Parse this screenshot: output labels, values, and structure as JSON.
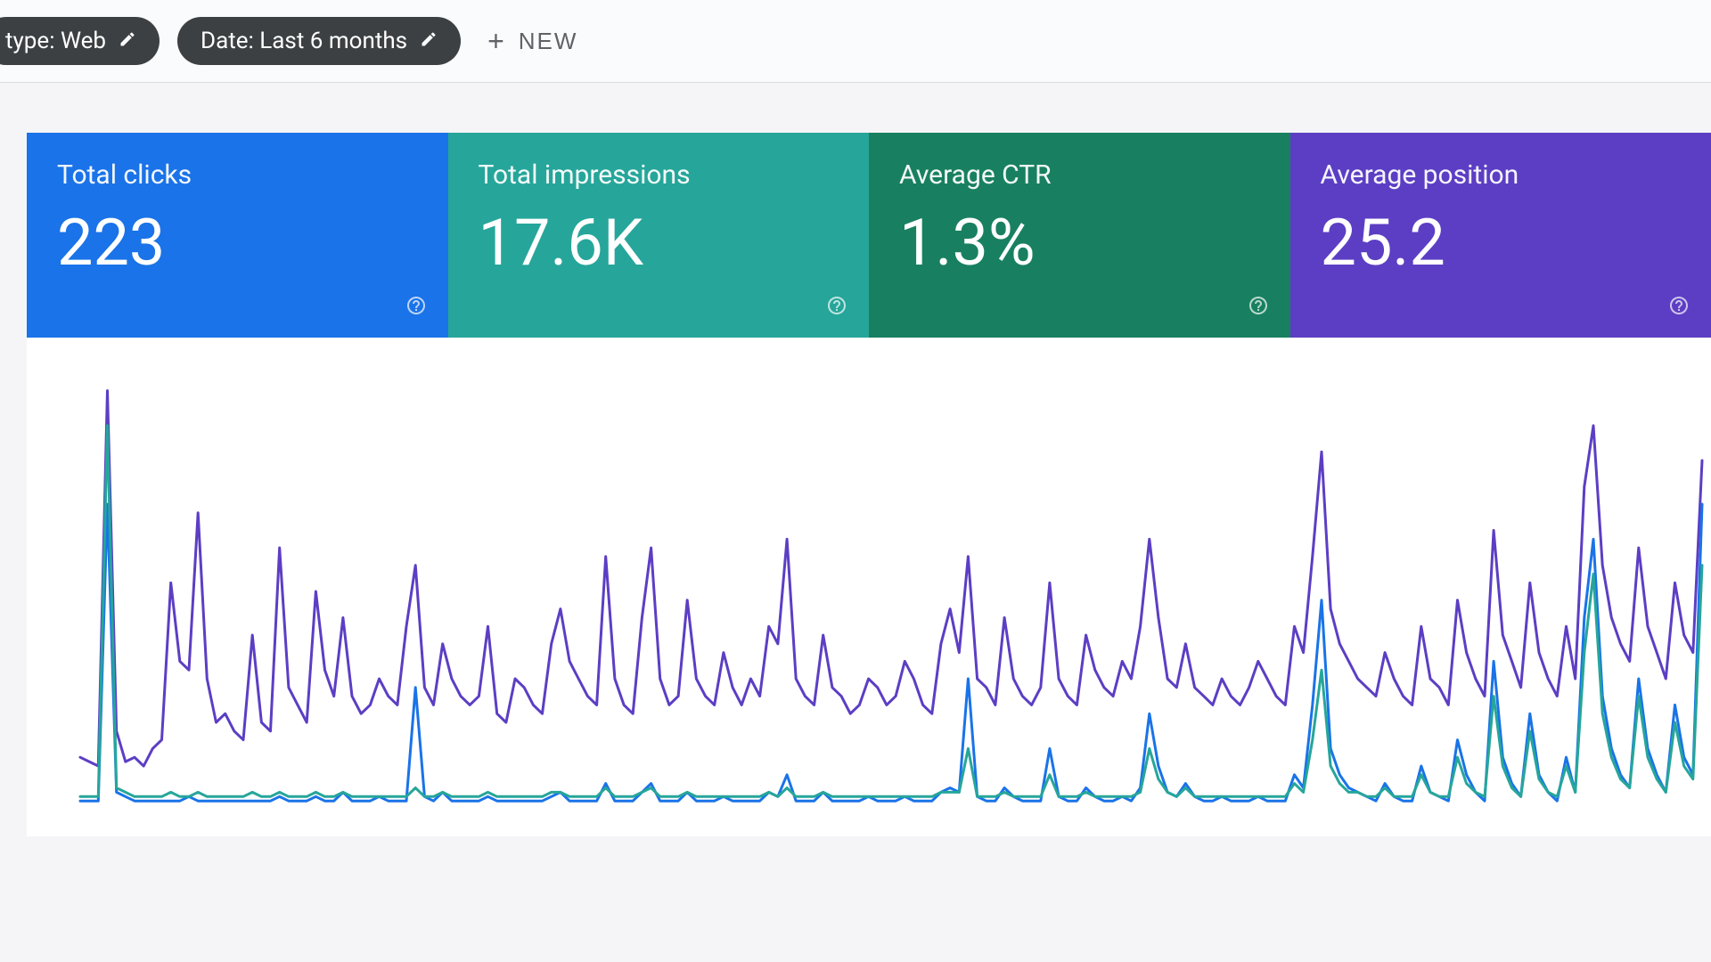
{
  "filters": {
    "type_chip_label": "type: Web",
    "date_chip_label": "Date: Last 6 months",
    "new_button_label": "NEW"
  },
  "metrics": [
    {
      "label": "Total clicks",
      "value": "223",
      "bg": "#1a73e8"
    },
    {
      "label": "Total impressions",
      "value": "17.6K",
      "bg": "#26a69a"
    },
    {
      "label": "Average CTR",
      "value": "1.3%",
      "bg": "#188060"
    },
    {
      "label": "Average position",
      "value": "25.2",
      "bg": "#5c3ec4"
    }
  ],
  "chart": {
    "type": "line",
    "background_color": "#ffffff",
    "viewbox_width": 1890,
    "viewbox_height": 560,
    "y_range": [
      0,
      100
    ],
    "x_count": 180,
    "stroke_width": 3,
    "series": [
      {
        "name": "impressions",
        "color": "#5c3ec4",
        "values": [
          12,
          11,
          10,
          96,
          18,
          11,
          12,
          10,
          14,
          16,
          52,
          34,
          32,
          68,
          30,
          20,
          22,
          18,
          16,
          40,
          20,
          18,
          60,
          28,
          24,
          20,
          50,
          32,
          26,
          44,
          26,
          22,
          24,
          30,
          26,
          24,
          42,
          56,
          28,
          24,
          38,
          30,
          26,
          24,
          26,
          42,
          22,
          20,
          30,
          28,
          24,
          22,
          38,
          46,
          34,
          30,
          26,
          24,
          58,
          30,
          24,
          22,
          44,
          60,
          30,
          24,
          26,
          48,
          30,
          26,
          24,
          36,
          28,
          24,
          30,
          26,
          42,
          38,
          62,
          30,
          26,
          24,
          40,
          28,
          26,
          22,
          24,
          30,
          28,
          24,
          26,
          34,
          30,
          24,
          22,
          38,
          46,
          36,
          58,
          30,
          28,
          24,
          44,
          30,
          26,
          24,
          28,
          52,
          30,
          26,
          24,
          40,
          32,
          28,
          26,
          34,
          30,
          42,
          62,
          44,
          30,
          28,
          38,
          28,
          26,
          24,
          30,
          26,
          24,
          28,
          34,
          30,
          26,
          24,
          42,
          36,
          58,
          82,
          46,
          38,
          34,
          30,
          28,
          26,
          36,
          30,
          26,
          24,
          42,
          30,
          28,
          24,
          48,
          36,
          30,
          26,
          64,
          40,
          34,
          28,
          52,
          36,
          30,
          26,
          42,
          30,
          74,
          88,
          56,
          44,
          38,
          34,
          60,
          42,
          36,
          30,
          52,
          40,
          36,
          80
        ]
      },
      {
        "name": "clicks",
        "color": "#1a73e8",
        "values": [
          2,
          2,
          2,
          70,
          4,
          3,
          2,
          2,
          2,
          2,
          2,
          2,
          3,
          2,
          2,
          2,
          2,
          2,
          2,
          2,
          2,
          2,
          3,
          2,
          2,
          2,
          3,
          2,
          2,
          4,
          2,
          2,
          2,
          3,
          2,
          2,
          2,
          28,
          3,
          2,
          4,
          2,
          2,
          2,
          2,
          3,
          2,
          2,
          2,
          2,
          2,
          2,
          3,
          4,
          2,
          2,
          2,
          2,
          6,
          2,
          2,
          2,
          4,
          6,
          2,
          2,
          2,
          4,
          2,
          2,
          2,
          3,
          2,
          2,
          2,
          2,
          4,
          3,
          8,
          2,
          2,
          2,
          4,
          2,
          2,
          2,
          2,
          3,
          2,
          2,
          2,
          3,
          2,
          2,
          2,
          4,
          5,
          4,
          30,
          3,
          2,
          2,
          5,
          3,
          2,
          2,
          2,
          14,
          3,
          2,
          2,
          5,
          3,
          2,
          2,
          3,
          2,
          5,
          22,
          10,
          4,
          3,
          6,
          3,
          2,
          2,
          3,
          2,
          2,
          2,
          3,
          2,
          2,
          2,
          8,
          5,
          24,
          48,
          14,
          8,
          5,
          4,
          3,
          2,
          6,
          3,
          2,
          2,
          10,
          4,
          3,
          2,
          16,
          8,
          4,
          2,
          34,
          12,
          6,
          3,
          22,
          8,
          4,
          2,
          12,
          4,
          44,
          62,
          26,
          14,
          8,
          5,
          30,
          14,
          8,
          4,
          24,
          12,
          8,
          70
        ]
      },
      {
        "name": "ctr",
        "color": "#26a69a",
        "values": [
          3,
          3,
          3,
          88,
          5,
          4,
          3,
          3,
          3,
          3,
          4,
          3,
          3,
          4,
          3,
          3,
          3,
          3,
          3,
          4,
          3,
          3,
          4,
          3,
          3,
          3,
          4,
          3,
          3,
          4,
          3,
          3,
          3,
          3,
          3,
          3,
          3,
          5,
          3,
          3,
          4,
          3,
          3,
          3,
          3,
          4,
          3,
          3,
          3,
          3,
          3,
          3,
          4,
          4,
          3,
          3,
          3,
          3,
          5,
          3,
          3,
          3,
          4,
          5,
          3,
          3,
          3,
          4,
          3,
          3,
          3,
          3,
          3,
          3,
          3,
          3,
          4,
          3,
          5,
          3,
          3,
          3,
          4,
          3,
          3,
          3,
          3,
          3,
          3,
          3,
          3,
          3,
          3,
          3,
          3,
          4,
          4,
          4,
          14,
          3,
          3,
          3,
          4,
          3,
          3,
          3,
          3,
          8,
          3,
          3,
          3,
          4,
          3,
          3,
          3,
          3,
          3,
          4,
          14,
          7,
          4,
          3,
          5,
          3,
          3,
          3,
          3,
          3,
          3,
          3,
          3,
          3,
          3,
          3,
          6,
          4,
          16,
          32,
          10,
          6,
          4,
          4,
          3,
          3,
          5,
          3,
          3,
          3,
          8,
          4,
          3,
          3,
          12,
          6,
          4,
          3,
          26,
          10,
          5,
          3,
          18,
          7,
          4,
          3,
          10,
          4,
          36,
          54,
          22,
          12,
          7,
          5,
          26,
          12,
          7,
          4,
          20,
          10,
          7,
          56
        ]
      }
    ]
  }
}
